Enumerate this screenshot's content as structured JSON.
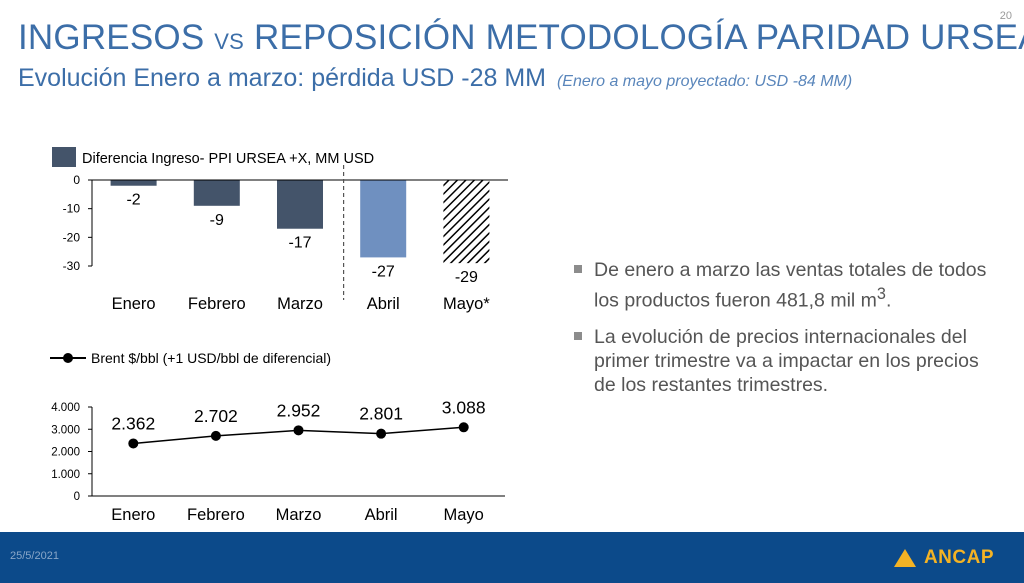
{
  "page_number": "20",
  "title": {
    "part1": "INGRESOS ",
    "vs": "VS",
    "part2": " REPOSICIÓN METODOLOGÍA PARIDAD URSEA"
  },
  "subtitle": {
    "text": "Evolución Enero a marzo: pérdida USD -28 MM",
    "note": "(Enero a mayo proyectado: USD -84 MM)"
  },
  "chart_data": [
    {
      "type": "bar",
      "legend": "Diferencia Ingreso- PPI URSEA +X, MM USD",
      "categories": [
        "Enero",
        "Febrero",
        "Marzo",
        "Abril",
        "Mayo*"
      ],
      "values": [
        -2,
        -9,
        -17,
        -27,
        -29
      ],
      "labels": [
        "-2",
        "-9",
        "-17",
        "-27",
        "-29"
      ],
      "bar_styles": [
        "actual",
        "actual",
        "actual",
        "projected",
        "hatched"
      ],
      "colors": {
        "actual": "#44546a",
        "projected": "#6f90c0",
        "hatched": "#000000"
      },
      "ylim": [
        -30,
        0
      ],
      "yticks": [
        "0",
        "-10",
        "-20",
        "-30"
      ],
      "divider_after": "Marzo"
    },
    {
      "type": "line",
      "legend": "Brent $/bbl (+1 USD/bbl de diferencial)",
      "categories": [
        "Enero",
        "Febrero",
        "Marzo",
        "Abril",
        "Mayo"
      ],
      "values": [
        2362,
        2702,
        2952,
        2801,
        3088
      ],
      "labels": [
        "2.362",
        "2.702",
        "2.952",
        "2.801",
        "3.088"
      ],
      "ylim": [
        0,
        4000
      ],
      "yticks": [
        "4.000",
        "3.000",
        "2.000",
        "1.000",
        "0"
      ],
      "color": "#000000"
    }
  ],
  "bullets": [
    {
      "text": "De enero a marzo las ventas totales de todos los productos fueron 481,8 mil m",
      "sup": "3",
      "end": "."
    },
    {
      "text": "La evolución de precios internacionales del primer trimestre va a impactar en los precios de los restantes trimestres.",
      "sup": "",
      "end": ""
    }
  ],
  "footer": {
    "date": "25/5/2021",
    "logo": "ANCAP"
  },
  "colors": {
    "title": "#3c6ea8",
    "footer_bg": "#0c4a8a",
    "logo": "#f4b324"
  }
}
